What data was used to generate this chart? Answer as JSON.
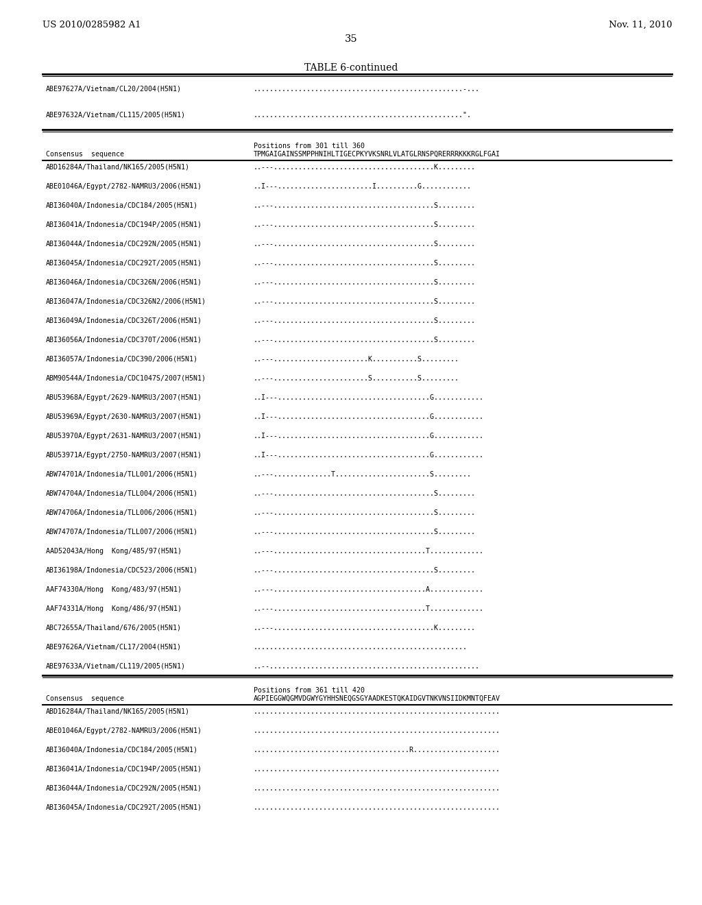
{
  "bg_color": "#ffffff",
  "header_left": "US 2010/0285982 A1",
  "header_right": "Nov. 11, 2010",
  "page_number": "35",
  "table_title": "TABLE 6-continued",
  "section1": {
    "rows_before_break": [
      {
        "label": "ABE97627A/Vietnam/CL20/2004(H5N1)",
        "seq": "...................................................-..."
      },
      {
        "label": "ABE97632A/Vietnam/CL115/2005(H5N1)",
        "seq": "...................................................\"."
      }
    ]
  },
  "section2": {
    "consensus_label": "Consensus  sequence",
    "position_header": "Positions from 301 till 360",
    "consensus_seq": "TPMGAIGAINSSMPPHNIHLTIGECPKYVKSNRLVLATGLRNSPQRERRRKKKRGLFGAI",
    "rows": [
      {
        "label": "ABD16284A/Thailand/NK165/2005(H5N1)",
        "seq": "..---.......................................K........."
      },
      {
        "label": "ABE01046A/Egypt/2782-NAMRU3/2006(H5N1)",
        "seq": "..I---.......................I..........G............"
      },
      {
        "label": "ABI36040A/Indonesia/CDC184/2005(H5N1)",
        "seq": "..---.......................................S........."
      },
      {
        "label": "ABI36041A/Indonesia/CDC194P/2005(H5N1)",
        "seq": "..---.......................................S........."
      },
      {
        "label": "ABI36044A/Indonesia/CDC292N/2005(H5N1)",
        "seq": "..---.......................................S........."
      },
      {
        "label": "ABI36045A/Indonesia/CDC292T/2005(H5N1)",
        "seq": "..---.......................................S........."
      },
      {
        "label": "ABI36046A/Indonesia/CDC326N/2006(H5N1)",
        "seq": "..---.......................................S........."
      },
      {
        "label": "ABI36047A/Indonesia/CDC326N2/2006(H5N1)",
        "seq": "..---.......................................S........."
      },
      {
        "label": "ABI36049A/Indonesia/CDC326T/2006(H5N1)",
        "seq": "..---.......................................S........."
      },
      {
        "label": "ABI36056A/Indonesia/CDC370T/2006(H5N1)",
        "seq": "..---.......................................S........."
      },
      {
        "label": "ABI36057A/Indonesia/CDC390/2006(H5N1)",
        "seq": "..---.......................K...........S........."
      },
      {
        "label": "ABM90544A/Indonesia/CDC1047S/2007(H5N1)",
        "seq": "..---.......................S...........S........."
      },
      {
        "label": "ABU53968A/Egypt/2629-NAMRU3/2007(H5N1)",
        "seq": "..I---.....................................G............"
      },
      {
        "label": "ABU53969A/Egypt/2630-NAMRU3/2007(H5N1)",
        "seq": "..I---.....................................G............"
      },
      {
        "label": "ABU53970A/Egypt/2631-NAMRU3/2007(H5N1)",
        "seq": "..I---.....................................G............"
      },
      {
        "label": "ABU53971A/Egypt/2750-NAMRU3/2007(H5N1)",
        "seq": "..I---.....................................G............"
      },
      {
        "label": "ABW74701A/Indonesia/TLL001/2006(H5N1)",
        "seq": "..---..............T.......................S........."
      },
      {
        "label": "ABW74704A/Indonesia/TLL004/2006(H5N1)",
        "seq": "..---.......................................S........."
      },
      {
        "label": "ABW74706A/Indonesia/TLL006/2006(H5N1)",
        "seq": "..---.......................................S........."
      },
      {
        "label": "ABW74707A/Indonesia/TLL007/2006(H5N1)",
        "seq": "..---.......................................S........."
      },
      {
        "label": "AAD52043A/Hong  Kong/485/97(H5N1)",
        "seq": "..---.....................................T............."
      },
      {
        "label": "ABI36198A/Indonesia/CDC523/2006(H5N1)",
        "seq": "..---.......................................S........."
      },
      {
        "label": "AAF74330A/Hong  Kong/483/97(H5N1)",
        "seq": "..---.....................................A............."
      },
      {
        "label": "AAF74331A/Hong  Kong/486/97(H5N1)",
        "seq": "..---.....................................T............."
      },
      {
        "label": "ABC72655A/Thailand/676/2005(H5N1)",
        "seq": "..---.......................................K........."
      },
      {
        "label": "ABE97626A/Vietnam/CL17/2004(H5N1)",
        "seq": "...................................................."
      },
      {
        "label": "ABE97633A/Vietnam/CL119/2005(H5N1)",
        "seq": "..--..................................................."
      }
    ]
  },
  "section3": {
    "consensus_label": "Consensus  sequence",
    "position_header": "Positions from 361 till 420",
    "consensus_seq": "AGPIEGGWQGMVDGWYGYHHSNEQGSGYAADKESTQKAIDGVTNKVNSIIDKMNTQFEAV",
    "rows": [
      {
        "label": "ABD16284A/Thailand/NK165/2005(H5N1)",
        "seq": "............................................................"
      },
      {
        "label": "ABE01046A/Egypt/2782-NAMRU3/2006(H5N1)",
        "seq": "............................................................"
      },
      {
        "label": "ABI36040A/Indonesia/CDC184/2005(H5N1)",
        "seq": "......................................R....................."
      },
      {
        "label": "ABI36041A/Indonesia/CDC194P/2005(H5N1)",
        "seq": "............................................................"
      },
      {
        "label": "ABI36044A/Indonesia/CDC292N/2005(H5N1)",
        "seq": "............................................................"
      },
      {
        "label": "ABI36045A/Indonesia/CDC292T/2005(H5N1)",
        "seq": "............................................................"
      }
    ]
  }
}
